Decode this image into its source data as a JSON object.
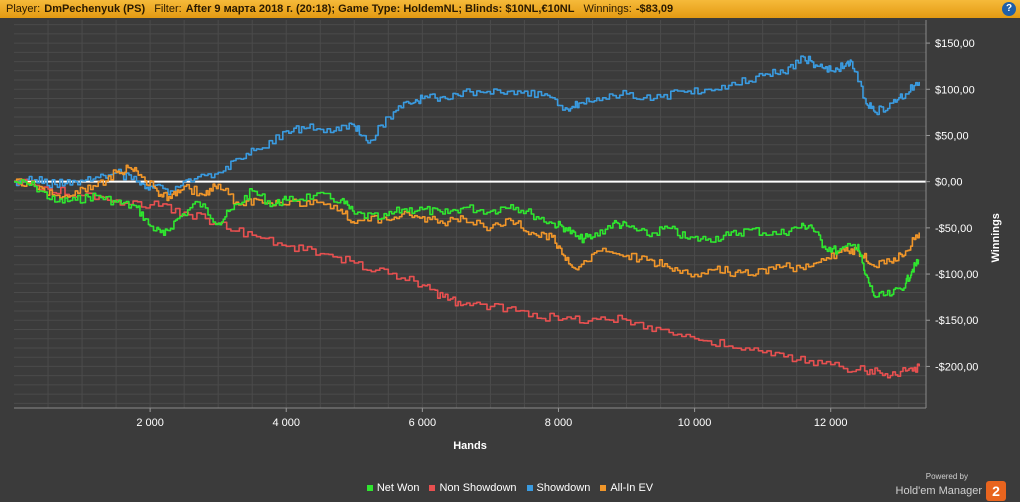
{
  "header": {
    "player_label": "Player:",
    "player_value": "DmPechenyuk (PS)",
    "filter_label": "Filter:",
    "filter_value": "After 9 марта 2018 г. (20:18); Game Type: HoldemNL; Blinds: $10NL,€10NL",
    "winnings_label": "Winnings:",
    "winnings_value": "-$83,09",
    "help_icon": "?"
  },
  "colors": {
    "background": "#3b3b3b",
    "grid": "#4b4b4b",
    "zero_line": "#ffffff",
    "net_won": "#2fe62f",
    "non_showdown": "#e85050",
    "showdown": "#3a9be0",
    "all_in_ev": "#f0962a"
  },
  "chart_data": {
    "type": "line",
    "xlabel": "Hands",
    "ylabel": "Winnings",
    "xlim": [
      0,
      13400
    ],
    "ylim": [
      -245,
      175
    ],
    "x_ticks": [
      2000,
      4000,
      6000,
      8000,
      10000,
      12000
    ],
    "x_tick_labels": [
      "2 000",
      "4 000",
      "6 000",
      "8 000",
      "10 000",
      "12 000"
    ],
    "y_ticks": [
      150,
      100,
      50,
      0,
      -50,
      -100,
      -150,
      -200
    ],
    "y_tick_labels": [
      "$150,00",
      "$100,00",
      "$50,00",
      "$0,00",
      "-$50,00",
      "-$100,00",
      "-$150,00",
      "-$200,00"
    ],
    "legend_position": "bottom",
    "grid": true,
    "series": [
      {
        "name": "Net Won",
        "color": "#2fe62f",
        "points": [
          [
            0,
            0
          ],
          [
            300,
            -5
          ],
          [
            600,
            -22
          ],
          [
            900,
            -20
          ],
          [
            1200,
            -15
          ],
          [
            1500,
            -22
          ],
          [
            1800,
            -28
          ],
          [
            2000,
            -48
          ],
          [
            2200,
            -58
          ],
          [
            2400,
            -40
          ],
          [
            2700,
            -22
          ],
          [
            3000,
            -45
          ],
          [
            3200,
            -30
          ],
          [
            3500,
            -10
          ],
          [
            3800,
            -25
          ],
          [
            4000,
            -20
          ],
          [
            4400,
            -15
          ],
          [
            4800,
            -20
          ],
          [
            5000,
            -35
          ],
          [
            5400,
            -40
          ],
          [
            5700,
            -30
          ],
          [
            6000,
            -30
          ],
          [
            6300,
            -35
          ],
          [
            6600,
            -28
          ],
          [
            7000,
            -32
          ],
          [
            7300,
            -25
          ],
          [
            7600,
            -35
          ],
          [
            7900,
            -45
          ],
          [
            8100,
            -50
          ],
          [
            8300,
            -62
          ],
          [
            8500,
            -60
          ],
          [
            8800,
            -45
          ],
          [
            9000,
            -48
          ],
          [
            9300,
            -58
          ],
          [
            9600,
            -50
          ],
          [
            9900,
            -62
          ],
          [
            10200,
            -62
          ],
          [
            10500,
            -58
          ],
          [
            10800,
            -52
          ],
          [
            11200,
            -57
          ],
          [
            11500,
            -50
          ],
          [
            11700,
            -47
          ],
          [
            11900,
            -70
          ],
          [
            12100,
            -75
          ],
          [
            12400,
            -68
          ],
          [
            12500,
            -100
          ],
          [
            12650,
            -125
          ],
          [
            12900,
            -122
          ],
          [
            13100,
            -110
          ],
          [
            13200,
            -95
          ],
          [
            13300,
            -85
          ]
        ]
      },
      {
        "name": "Non Showdown",
        "color": "#e85050",
        "points": [
          [
            0,
            0
          ],
          [
            500,
            -8
          ],
          [
            1000,
            -15
          ],
          [
            1500,
            -20
          ],
          [
            2000,
            -25
          ],
          [
            2500,
            -33
          ],
          [
            3000,
            -45
          ],
          [
            3500,
            -58
          ],
          [
            4000,
            -70
          ],
          [
            4500,
            -78
          ],
          [
            5000,
            -88
          ],
          [
            5500,
            -100
          ],
          [
            6000,
            -112
          ],
          [
            6300,
            -125
          ],
          [
            6600,
            -133
          ],
          [
            7000,
            -135
          ],
          [
            7500,
            -140
          ],
          [
            8000,
            -150
          ],
          [
            8500,
            -148
          ],
          [
            9000,
            -150
          ],
          [
            9500,
            -160
          ],
          [
            10000,
            -170
          ],
          [
            10500,
            -178
          ],
          [
            11000,
            -185
          ],
          [
            11500,
            -193
          ],
          [
            12000,
            -198
          ],
          [
            12500,
            -205
          ],
          [
            12800,
            -208
          ],
          [
            13100,
            -205
          ],
          [
            13300,
            -200
          ]
        ]
      },
      {
        "name": "Showdown",
        "color": "#3a9be0",
        "points": [
          [
            0,
            0
          ],
          [
            300,
            2
          ],
          [
            600,
            -3
          ],
          [
            900,
            0
          ],
          [
            1200,
            5
          ],
          [
            1500,
            10
          ],
          [
            1800,
            0
          ],
          [
            2000,
            -5
          ],
          [
            2300,
            -10
          ],
          [
            2600,
            0
          ],
          [
            3000,
            10
          ],
          [
            3300,
            25
          ],
          [
            3600,
            35
          ],
          [
            4000,
            55
          ],
          [
            4300,
            58
          ],
          [
            4700,
            55
          ],
          [
            5000,
            60
          ],
          [
            5200,
            42
          ],
          [
            5500,
            70
          ],
          [
            5800,
            85
          ],
          [
            6000,
            90
          ],
          [
            6300,
            92
          ],
          [
            6600,
            98
          ],
          [
            7000,
            95
          ],
          [
            7400,
            98
          ],
          [
            7800,
            95
          ],
          [
            8100,
            80
          ],
          [
            8300,
            85
          ],
          [
            8600,
            88
          ],
          [
            9000,
            95
          ],
          [
            9400,
            90
          ],
          [
            9800,
            98
          ],
          [
            10200,
            100
          ],
          [
            10600,
            105
          ],
          [
            11000,
            115
          ],
          [
            11300,
            118
          ],
          [
            11600,
            135
          ],
          [
            11800,
            125
          ],
          [
            12000,
            120
          ],
          [
            12200,
            125
          ],
          [
            12300,
            130
          ],
          [
            12500,
            90
          ],
          [
            12650,
            75
          ],
          [
            12900,
            85
          ],
          [
            13100,
            95
          ],
          [
            13300,
            108
          ]
        ]
      },
      {
        "name": "All-In EV",
        "color": "#f0962a",
        "points": [
          [
            0,
            0
          ],
          [
            300,
            -5
          ],
          [
            600,
            -15
          ],
          [
            900,
            -10
          ],
          [
            1200,
            -5
          ],
          [
            1500,
            10
          ],
          [
            1700,
            15
          ],
          [
            1900,
            5
          ],
          [
            2100,
            -10
          ],
          [
            2300,
            -18
          ],
          [
            2500,
            -5
          ],
          [
            2800,
            -15
          ],
          [
            3000,
            -3
          ],
          [
            3300,
            -25
          ],
          [
            3600,
            -20
          ],
          [
            4000,
            -25
          ],
          [
            4400,
            -20
          ],
          [
            4800,
            -30
          ],
          [
            5000,
            -45
          ],
          [
            5400,
            -40
          ],
          [
            5700,
            -35
          ],
          [
            6000,
            -38
          ],
          [
            6300,
            -45
          ],
          [
            6600,
            -40
          ],
          [
            7000,
            -50
          ],
          [
            7300,
            -42
          ],
          [
            7600,
            -55
          ],
          [
            7900,
            -60
          ],
          [
            8100,
            -85
          ],
          [
            8300,
            -92
          ],
          [
            8600,
            -75
          ],
          [
            9000,
            -80
          ],
          [
            9300,
            -85
          ],
          [
            9600,
            -92
          ],
          [
            9900,
            -100
          ],
          [
            10300,
            -95
          ],
          [
            10600,
            -98
          ],
          [
            10900,
            -100
          ],
          [
            11200,
            -90
          ],
          [
            11600,
            -95
          ],
          [
            11900,
            -85
          ],
          [
            12200,
            -75
          ],
          [
            12400,
            -75
          ],
          [
            12600,
            -90
          ],
          [
            12900,
            -88
          ],
          [
            13100,
            -75
          ],
          [
            13300,
            -55
          ]
        ]
      }
    ]
  },
  "branding": {
    "powered_by": "Powered by",
    "name": "Hold'em Manager",
    "logo_text": "2"
  }
}
